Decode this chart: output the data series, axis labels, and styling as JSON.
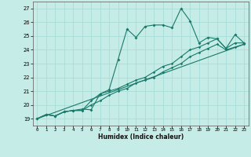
{
  "xlabel": "Humidex (Indice chaleur)",
  "bg_color": "#c5ece6",
  "grid_color": "#a8ddd7",
  "line_color": "#1a7a6a",
  "xlim": [
    -0.5,
    23.5
  ],
  "ylim": [
    18.5,
    27.5
  ],
  "xticks": [
    0,
    1,
    2,
    3,
    4,
    5,
    6,
    7,
    8,
    9,
    10,
    11,
    12,
    13,
    14,
    15,
    16,
    17,
    18,
    19,
    20,
    21,
    22,
    23
  ],
  "yticks": [
    19,
    20,
    21,
    22,
    23,
    24,
    25,
    26,
    27
  ],
  "series1_x": [
    0,
    1,
    2,
    3,
    4,
    5,
    6,
    7,
    8,
    9,
    10,
    11,
    12,
    13,
    14,
    15,
    16,
    17,
    18,
    19,
    20,
    21,
    22,
    23
  ],
  "series1_y": [
    19.0,
    19.3,
    19.2,
    19.5,
    19.6,
    19.7,
    19.65,
    20.8,
    21.1,
    23.3,
    25.5,
    24.9,
    25.7,
    25.8,
    25.8,
    25.6,
    27.0,
    26.1,
    24.5,
    24.9,
    24.8,
    24.1,
    25.1,
    24.5
  ],
  "series2_x": [
    0,
    1,
    2,
    3,
    4,
    5,
    6,
    7,
    8,
    9,
    10,
    11,
    12,
    13,
    14,
    15,
    16,
    17,
    18,
    19,
    20,
    21,
    22,
    23
  ],
  "series2_y": [
    19.0,
    19.3,
    19.2,
    19.5,
    19.6,
    19.6,
    20.3,
    20.8,
    21.0,
    21.2,
    21.5,
    21.8,
    22.0,
    22.4,
    22.8,
    23.0,
    23.5,
    24.0,
    24.2,
    24.5,
    24.8,
    24.1,
    24.5,
    24.5
  ],
  "series3_x": [
    0,
    1,
    2,
    3,
    4,
    5,
    6,
    7,
    8,
    9,
    10,
    11,
    12,
    13,
    14,
    15,
    16,
    17,
    18,
    19,
    20,
    21,
    22,
    23
  ],
  "series3_y": [
    19.0,
    19.3,
    19.2,
    19.5,
    19.6,
    19.6,
    20.0,
    20.3,
    20.7,
    21.0,
    21.2,
    21.6,
    21.8,
    22.0,
    22.4,
    22.7,
    23.0,
    23.5,
    23.8,
    24.1,
    24.4,
    24.0,
    24.2,
    24.4
  ],
  "series4_x": [
    0,
    23
  ],
  "series4_y": [
    19.0,
    24.4
  ]
}
